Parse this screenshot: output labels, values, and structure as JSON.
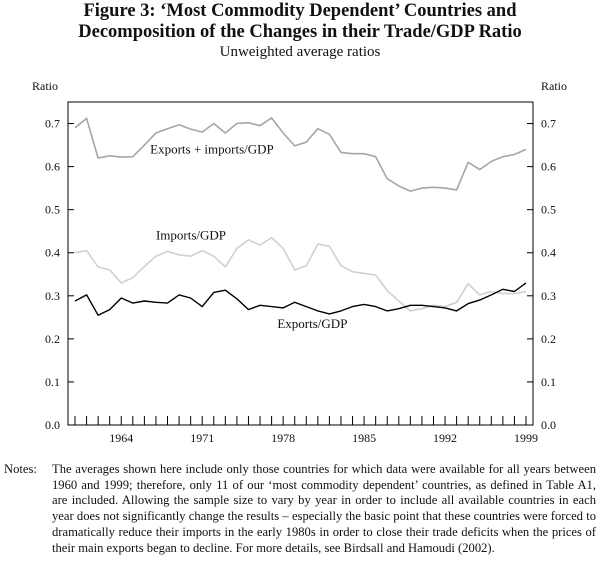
{
  "figure": {
    "title_line1": "Figure 3: ‘Most Commodity Dependent’ Countries and",
    "title_line2": "Decomposition of the Changes in their Trade/GDP Ratio",
    "subtitle": "Unweighted average ratios"
  },
  "chart_data": {
    "type": "line",
    "ylabel_left": "Ratio",
    "ylabel_right": "Ratio",
    "ylim": [
      0,
      0.75
    ],
    "yticks": [
      "0.0",
      "0.1",
      "0.2",
      "0.3",
      "0.4",
      "0.5",
      "0.6",
      "0.7"
    ],
    "xlim": [
      1960,
      1999
    ],
    "xticks": [
      "1964",
      "1971",
      "1978",
      "1985",
      "1992",
      "1999"
    ],
    "x": [
      1960,
      1961,
      1962,
      1963,
      1964,
      1965,
      1966,
      1967,
      1968,
      1969,
      1970,
      1971,
      1972,
      1973,
      1974,
      1975,
      1976,
      1977,
      1978,
      1979,
      1980,
      1981,
      1982,
      1983,
      1984,
      1985,
      1986,
      1987,
      1988,
      1989,
      1990,
      1991,
      1992,
      1993,
      1994,
      1995,
      1996,
      1997,
      1998,
      1999
    ],
    "series": [
      {
        "name": "Exports + imports/GDP",
        "color": "#a6a6a6",
        "label_year": 1966.5,
        "label_value": 0.64,
        "values": [
          0.69,
          0.712,
          0.62,
          0.625,
          0.622,
          0.623,
          0.65,
          0.678,
          0.688,
          0.697,
          0.687,
          0.68,
          0.7,
          0.678,
          0.7,
          0.702,
          0.695,
          0.713,
          0.678,
          0.648,
          0.657,
          0.688,
          0.675,
          0.633,
          0.63,
          0.63,
          0.623,
          0.572,
          0.555,
          0.543,
          0.55,
          0.552,
          0.55,
          0.546,
          0.61,
          0.593,
          0.612,
          0.623,
          0.628,
          0.64
        ]
      },
      {
        "name": "Imports/GDP",
        "color": "#d0d0d0",
        "label_year": 1967,
        "label_value": 0.44,
        "values": [
          0.4,
          0.405,
          0.367,
          0.36,
          0.33,
          0.342,
          0.368,
          0.392,
          0.403,
          0.395,
          0.392,
          0.405,
          0.392,
          0.367,
          0.41,
          0.43,
          0.418,
          0.435,
          0.41,
          0.36,
          0.37,
          0.42,
          0.415,
          0.37,
          0.356,
          0.352,
          0.348,
          0.312,
          0.288,
          0.265,
          0.27,
          0.278,
          0.275,
          0.285,
          0.328,
          0.302,
          0.31,
          0.305,
          0.305,
          0.31
        ]
      },
      {
        "name": "Exports/GDP",
        "color": "#000000",
        "label_year": 1977.5,
        "label_value": 0.235,
        "values": [
          0.288,
          0.302,
          0.255,
          0.268,
          0.295,
          0.283,
          0.288,
          0.285,
          0.283,
          0.302,
          0.295,
          0.275,
          0.308,
          0.313,
          0.293,
          0.268,
          0.278,
          0.275,
          0.272,
          0.285,
          0.275,
          0.265,
          0.258,
          0.265,
          0.275,
          0.28,
          0.275,
          0.265,
          0.27,
          0.278,
          0.278,
          0.275,
          0.272,
          0.265,
          0.282,
          0.29,
          0.302,
          0.315,
          0.31,
          0.33
        ]
      }
    ]
  },
  "notes": {
    "label": "Notes:",
    "text": "The averages shown here include only those countries for which data were available for all years between 1960 and 1999; therefore, only 11 of our ‘most commodity dependent’ countries, as defined in Table A1, are included. Allowing the sample size to vary by year in order to include all available countries in each year does not significantly change the results – especially the basic point that these countries were forced to dramatically reduce their imports in the early 1980s in order to close their trade deficits when the prices of their main exports began to decline. For more details, see Birdsall and Hamoudi (2002)."
  }
}
